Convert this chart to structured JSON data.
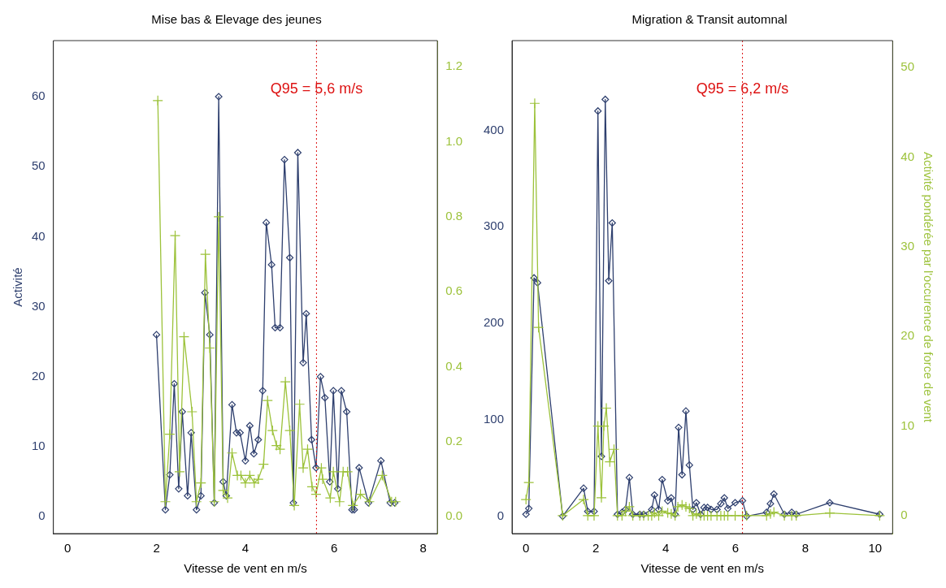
{
  "chart_data": [
    {
      "type": "line",
      "title": "Mise bas & Elevage des jeunes",
      "xlabel": "Vitesse de vent en m/s",
      "ylabel": "Activité",
      "grid": false,
      "legend": false,
      "xlim": [
        -0.32,
        8.32
      ],
      "xticks": [
        0,
        2,
        4,
        6,
        8
      ],
      "ylim": [
        -2.4,
        68
      ],
      "yticks": [
        0,
        10,
        20,
        30,
        40,
        50,
        60
      ],
      "y2lim": [
        -0.045,
        1.27
      ],
      "y2ticks": [
        {
          "value": 0,
          "label": "0.0"
        },
        {
          "value": 0.2,
          "label": "0.2"
        },
        {
          "value": 0.4,
          "label": "0.4"
        },
        {
          "value": 0.6,
          "label": "0.6"
        },
        {
          "value": 0.8,
          "label": "0.8"
        },
        {
          "value": 1,
          "label": "1.0"
        },
        {
          "value": 1.2,
          "label": "1.2"
        }
      ],
      "ref_lines": [
        {
          "axis": "x",
          "value": 5.6,
          "label": "Q95 = 5,6 m/s",
          "color": "#dd1111",
          "line_style": "dotted"
        }
      ],
      "series": [
        {
          "color": "#2e3f6e",
          "marker": "diamond",
          "x": [
            2.0,
            2.2,
            2.3,
            2.4,
            2.5,
            2.58,
            2.7,
            2.78,
            2.9,
            3.0,
            3.09,
            3.2,
            3.3,
            3.4,
            3.5,
            3.57,
            3.7,
            3.8,
            3.88,
            4.0,
            4.1,
            4.19,
            4.29,
            4.39,
            4.47,
            4.59,
            4.67,
            4.78,
            4.88,
            5.0,
            5.08,
            5.18,
            5.3,
            5.37,
            5.49,
            5.59,
            5.69,
            5.79,
            5.9,
            5.98,
            6.08,
            6.16,
            6.28,
            6.4,
            6.45,
            6.56,
            6.77,
            7.05,
            7.26,
            7.36
          ],
          "values": [
            26,
            1,
            6,
            19,
            4,
            15,
            3,
            12,
            1,
            3,
            32,
            26,
            2,
            60,
            5,
            3,
            16,
            12,
            12,
            8,
            13,
            9,
            11,
            18,
            42,
            36,
            27,
            27,
            51,
            37,
            2,
            52,
            22,
            29,
            11,
            7,
            20,
            17,
            5,
            18,
            4,
            18,
            15,
            1,
            1,
            7,
            2,
            8,
            2,
            2
          ]
        },
        {
          "color": "#9cc23a",
          "marker": "cross",
          "axis": "y2",
          "x": [
            2.03,
            2.2,
            2.3,
            2.42,
            2.52,
            2.62,
            2.8,
            2.9,
            3.0,
            3.1,
            3.2,
            3.3,
            3.4,
            3.5,
            3.6,
            3.7,
            3.82,
            3.9,
            4.0,
            4.1,
            4.2,
            4.29,
            4.41,
            4.5,
            4.61,
            4.7,
            4.78,
            4.9,
            5.0,
            5.1,
            5.22,
            5.3,
            5.4,
            5.5,
            5.59,
            5.71,
            5.74,
            5.91,
            5.98,
            6.12,
            6.2,
            6.3,
            6.42,
            6.59,
            6.79,
            7.08,
            7.29,
            7.38
          ],
          "values": [
            1.11,
            0.04,
            0.22,
            0.75,
            0.12,
            0.48,
            0.28,
            0.04,
            0.09,
            0.7,
            0.45,
            0.04,
            0.8,
            0.07,
            0.05,
            0.17,
            0.11,
            0.11,
            0.09,
            0.11,
            0.09,
            0.1,
            0.14,
            0.31,
            0.23,
            0.19,
            0.18,
            0.36,
            0.23,
            0.03,
            0.3,
            0.13,
            0.18,
            0.08,
            0.06,
            0.13,
            0.1,
            0.05,
            0.12,
            0.04,
            0.12,
            0.12,
            0.03,
            0.06,
            0.04,
            0.11,
            0.04,
            0.04
          ]
        }
      ]
    },
    {
      "type": "line",
      "title": "Migration & Transit automnal",
      "xlabel": "Vitesse de vent en m/s",
      "y2label": "Activité pondérée par l'occurence de force de vent",
      "grid": false,
      "legend": false,
      "xlim": [
        -0.4,
        10.5
      ],
      "xticks": [
        0,
        2,
        4,
        6,
        8,
        10
      ],
      "ylim": [
        -18,
        493
      ],
      "yticks": [
        0,
        100,
        200,
        300,
        400
      ],
      "y2lim": [
        -2,
        53
      ],
      "y2ticks": [
        0,
        10,
        20,
        30,
        40,
        50
      ],
      "ref_lines": [
        {
          "axis": "x",
          "value": 6.2,
          "label": "Q95 = 6,2 m/s",
          "color": "#dd1111",
          "line_style": "dotted"
        }
      ],
      "series": [
        {
          "color": "#2e3f6e",
          "marker": "diamond",
          "x": [
            0,
            0.08,
            0.23,
            0.33,
            1.05,
            1.65,
            1.77,
            1.95,
            2.06,
            2.16,
            2.27,
            2.37,
            2.47,
            2.62,
            2.75,
            2.85,
            2.96,
            3.06,
            3.26,
            3.37,
            3.6,
            3.68,
            3.8,
            3.9,
            4.06,
            4.16,
            4.27,
            4.37,
            4.47,
            4.58,
            4.68,
            4.78,
            4.88,
            5.0,
            5.1,
            5.2,
            5.3,
            5.47,
            5.58,
            5.68,
            5.78,
            5.99,
            6.2,
            6.32,
            6.89,
            7.0,
            7.1,
            7.4,
            7.61,
            7.74,
            8.7,
            10.13
          ],
          "values": [
            2,
            8,
            247,
            242,
            0,
            29,
            5,
            5,
            420,
            62,
            432,
            244,
            304,
            2,
            4,
            7,
            40,
            2,
            2,
            2,
            7,
            22,
            7,
            38,
            16,
            19,
            2,
            92,
            43,
            109,
            53,
            7,
            14,
            2,
            9,
            9,
            7,
            7,
            13,
            19,
            8,
            14,
            16,
            0,
            4,
            13,
            23,
            2,
            4,
            2,
            14,
            2
          ]
        },
        {
          "color": "#9cc23a",
          "marker": "cross",
          "axis": "y2",
          "x": [
            0,
            0.08,
            0.25,
            0.36,
            1.05,
            1.65,
            1.77,
            1.95,
            2.06,
            2.16,
            2.23,
            2.3,
            2.4,
            2.52,
            2.62,
            2.75,
            2.85,
            2.96,
            3.06,
            3.26,
            3.37,
            3.5,
            3.6,
            3.68,
            3.8,
            3.9,
            4.06,
            4.16,
            4.27,
            4.35,
            4.47,
            4.58,
            4.68,
            4.78,
            4.88,
            5.0,
            5.1,
            5.2,
            5.3,
            5.47,
            5.58,
            5.68,
            5.78,
            5.99,
            6.2,
            6.32,
            6.89,
            7.0,
            7.1,
            7.4,
            7.61,
            7.74,
            8.7,
            10.13
          ],
          "values": [
            1.8,
            3.7,
            46,
            21,
            0,
            1.8,
            0,
            0,
            10,
            2,
            10,
            12,
            6,
            7.4,
            0,
            0,
            0.5,
            1,
            0,
            0,
            0,
            0,
            0,
            0.3,
            0,
            0.5,
            0.3,
            0.2,
            0,
            1,
            1.2,
            1,
            0.8,
            0,
            0.2,
            0,
            0,
            0,
            0,
            0,
            0,
            0,
            0,
            0,
            0,
            0,
            0,
            0.2,
            0.4,
            0,
            0,
            0,
            0.3,
            0
          ]
        }
      ]
    }
  ]
}
